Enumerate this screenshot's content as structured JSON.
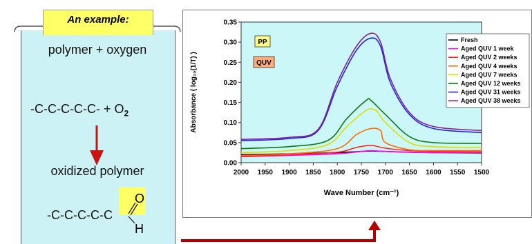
{
  "panel": {
    "tab_label": "An example:",
    "line1": "polymer + oxygen",
    "formula1_chain": "-C-C-C-C-C-  +  O",
    "formula1_sub": "2",
    "line2": "oxidized polymer",
    "formula2_chain": "-C-C-C-C-C",
    "carbonyl_o": "O",
    "carbonyl_h": "H",
    "arrow_color": "#cc1111",
    "highlight_color": "#ffff66",
    "panel_color": "#ccf2f5"
  },
  "chart_data": {
    "type": "line",
    "title": "",
    "xlabel": "Wave Number (cm⁻¹)",
    "ylabel": "Absorbance ( log₁₀(1/T) )",
    "xlim": [
      2000,
      1500
    ],
    "ylim": [
      0,
      0.35
    ],
    "x_ticks": [
      "2000",
      "1950",
      "1900",
      "1850",
      "1800",
      "1750",
      "1700",
      "1650",
      "1600",
      "1550",
      "1500"
    ],
    "y_ticks": [
      "0.00",
      "0.05",
      "0.10",
      "0.15",
      "0.20",
      "0.25",
      "0.30",
      "0.35"
    ],
    "annotations": [
      "PP",
      "QUV"
    ],
    "legend_position": "right",
    "plot_background": "#ccf7f8",
    "series": [
      {
        "name": "Fresh",
        "color": "#000000",
        "x": [
          2000,
          1900,
          1800,
          1750,
          1730,
          1700,
          1650,
          1600,
          1500
        ],
        "values": [
          0.02,
          0.022,
          0.025,
          0.028,
          0.029,
          0.028,
          0.026,
          0.025,
          0.024
        ]
      },
      {
        "name": "Aged QUV 1 week",
        "color": "#ff00ff",
        "x": [
          2000,
          1900,
          1800,
          1750,
          1730,
          1700,
          1650,
          1600,
          1500
        ],
        "values": [
          0.015,
          0.018,
          0.022,
          0.028,
          0.03,
          0.028,
          0.026,
          0.025,
          0.025
        ]
      },
      {
        "name": "Aged QUV 2 weeks",
        "color": "#ff2222",
        "x": [
          2000,
          1900,
          1800,
          1760,
          1730,
          1700,
          1650,
          1600,
          1500
        ],
        "values": [
          0.015,
          0.02,
          0.026,
          0.038,
          0.043,
          0.036,
          0.03,
          0.028,
          0.027
        ]
      },
      {
        "name": "Aged QUV 4 weeks",
        "color": "#ff6a00",
        "x": [
          2000,
          1900,
          1800,
          1760,
          1730,
          1710,
          1700,
          1650,
          1600,
          1500
        ],
        "values": [
          0.018,
          0.022,
          0.035,
          0.07,
          0.085,
          0.08,
          0.05,
          0.032,
          0.03,
          0.03
        ]
      },
      {
        "name": "Aged QUV 7 weeks",
        "color": "#dddd00",
        "x": [
          2000,
          1900,
          1820,
          1780,
          1740,
          1720,
          1700,
          1650,
          1600,
          1500
        ],
        "values": [
          0.025,
          0.03,
          0.045,
          0.09,
          0.13,
          0.13,
          0.1,
          0.05,
          0.04,
          0.038
        ]
      },
      {
        "name": "Aged QUV 12 weeks",
        "color": "#117711",
        "x": [
          2000,
          1900,
          1820,
          1780,
          1740,
          1730,
          1700,
          1650,
          1600,
          1500
        ],
        "values": [
          0.035,
          0.04,
          0.055,
          0.11,
          0.155,
          0.155,
          0.12,
          0.065,
          0.05,
          0.048
        ]
      },
      {
        "name": "Aged QUV 31 weeks",
        "color": "#2222ee",
        "x": [
          2000,
          1900,
          1840,
          1800,
          1760,
          1730,
          1710,
          1690,
          1650,
          1600,
          1500
        ],
        "values": [
          0.055,
          0.06,
          0.08,
          0.19,
          0.28,
          0.31,
          0.29,
          0.2,
          0.12,
          0.085,
          0.075
        ]
      },
      {
        "name": "Aged QUV 38 weeks",
        "color": "#882288",
        "x": [
          2000,
          1900,
          1840,
          1800,
          1760,
          1730,
          1710,
          1690,
          1650,
          1600,
          1500
        ],
        "values": [
          0.058,
          0.063,
          0.083,
          0.2,
          0.29,
          0.322,
          0.3,
          0.21,
          0.125,
          0.09,
          0.08
        ]
      }
    ]
  }
}
